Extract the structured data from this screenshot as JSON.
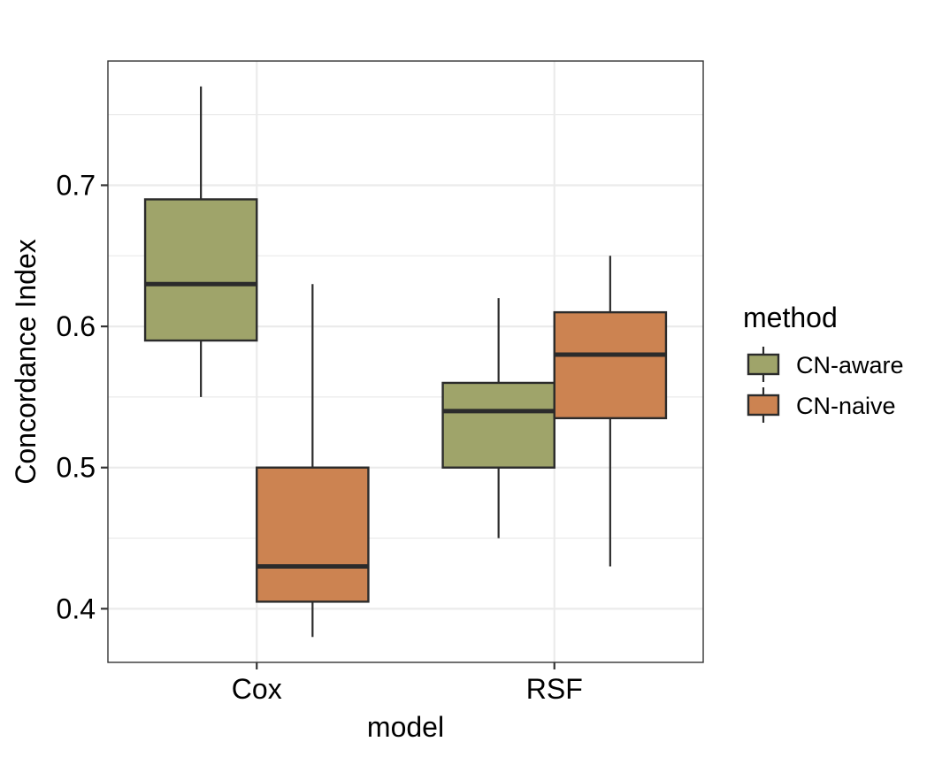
{
  "chart_data": {
    "type": "boxplot",
    "xlabel": "model",
    "ylabel": "Concordance Index",
    "categories": [
      "Cox",
      "RSF"
    ],
    "ylim": [
      0.362,
      0.788
    ],
    "yticks": [
      0.4,
      0.5,
      0.6,
      0.7
    ],
    "ytick_labels": [
      "0.4",
      "0.5",
      "0.6",
      "0.7"
    ],
    "grid": true,
    "legend": {
      "title": "method",
      "position": "right"
    },
    "series": [
      {
        "name": "CN-aware",
        "color": "#9fa46a",
        "boxes": [
          {
            "category": "Cox",
            "min": 0.55,
            "q1": 0.59,
            "median": 0.63,
            "q3": 0.69,
            "max": 0.77
          },
          {
            "category": "RSF",
            "min": 0.45,
            "q1": 0.5,
            "median": 0.54,
            "q3": 0.56,
            "max": 0.62
          }
        ]
      },
      {
        "name": "CN-naive",
        "color": "#cc8351",
        "boxes": [
          {
            "category": "Cox",
            "min": 0.38,
            "q1": 0.405,
            "median": 0.43,
            "q3": 0.5,
            "max": 0.63
          },
          {
            "category": "RSF",
            "min": 0.43,
            "q1": 0.535,
            "median": 0.58,
            "q3": 0.61,
            "max": 0.65
          }
        ]
      }
    ],
    "line_color": "#2b2b2b",
    "grid_color": "#ebebeb",
    "panel_border_color": "#333333"
  }
}
